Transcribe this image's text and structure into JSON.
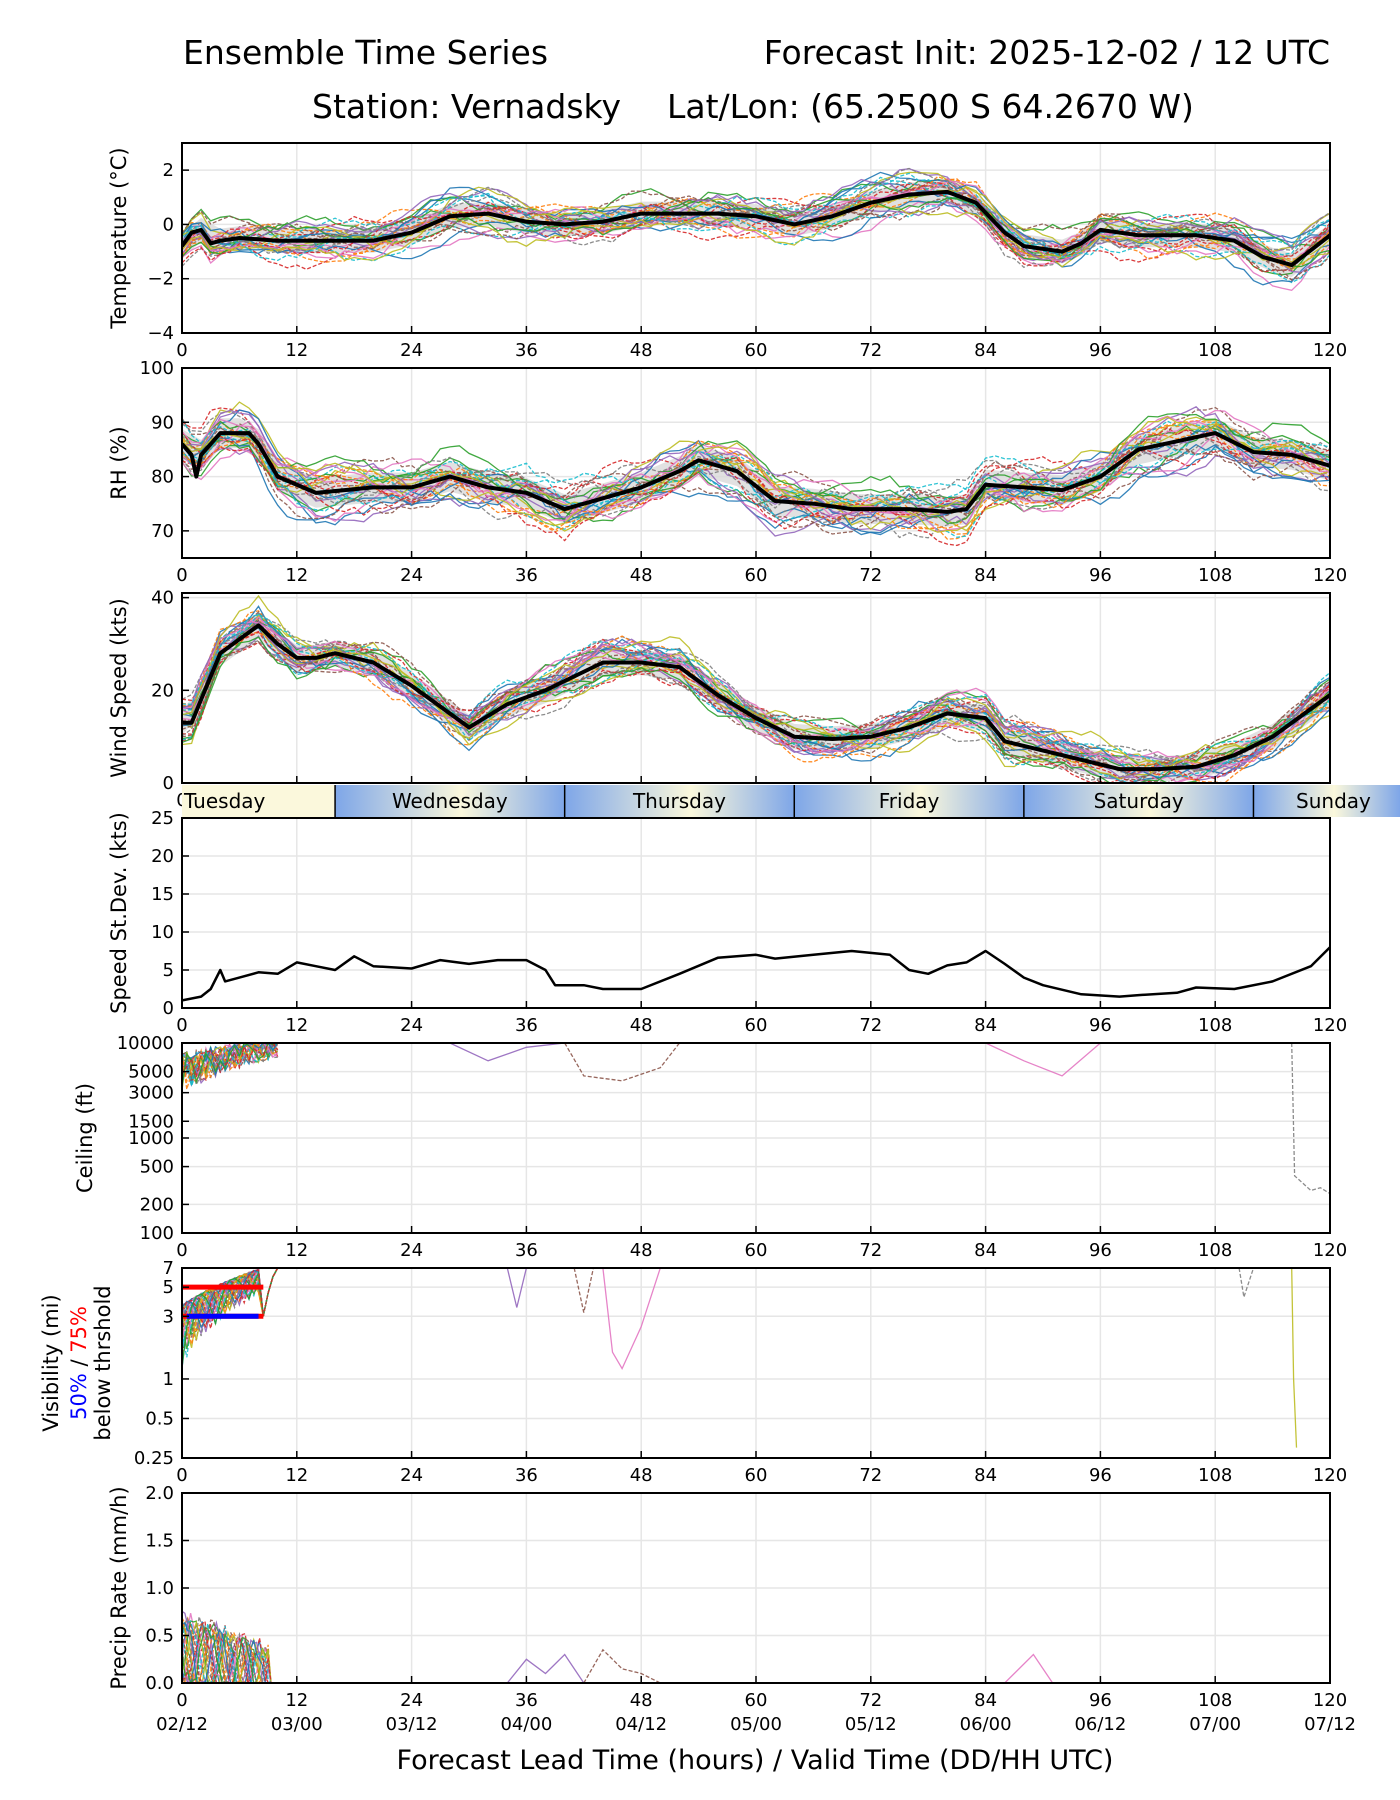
{
  "header": {
    "title_left": "Ensemble Time Series",
    "title_right": "Forecast Init: 2025-12-02 / 12 UTC",
    "station": "Station: Vernadsky",
    "latlon": "Lat/Lon: (65.2500 S 64.2670 W)"
  },
  "colors": {
    "members": [
      "#1f77b4",
      "#ff7f0e",
      "#2ca02c",
      "#d62728",
      "#9467bd",
      "#8c564b",
      "#e377c2",
      "#7f7f7f",
      "#bcbd22",
      "#17becf"
    ],
    "mean": "#000000",
    "spread": "#d9d9d9",
    "vis50": "#0000ff",
    "vis75": "#ff0000",
    "day_band_light": "#fbf8dc",
    "day_band_dark": "#7ea6e8"
  },
  "chart_data": {
    "type": "line",
    "x_label": "Forecast Lead Time (hours) / Valid Time (DD/HH UTC)",
    "x_ticks": [
      0,
      12,
      24,
      36,
      48,
      60,
      72,
      84,
      96,
      108,
      120
    ],
    "valid_times": [
      "02/12",
      "03/00",
      "03/12",
      "04/00",
      "04/12",
      "05/00",
      "05/12",
      "06/00",
      "06/12",
      "07/00",
      "07/12"
    ],
    "days": [
      "Tuesday",
      "Wednesday",
      "Thursday",
      "Friday",
      "Saturday",
      "Sunday"
    ],
    "day_boundaries_h": [
      16,
      40,
      64,
      88,
      112
    ],
    "panels": [
      {
        "id": "temperature",
        "ylabel": "Temperature (°C)",
        "ylim": [
          -4,
          3
        ],
        "yticks": [
          -4,
          -2,
          0,
          2
        ],
        "scale": "linear",
        "mean": [
          [
            0,
            -0.8
          ],
          [
            1,
            -0.3
          ],
          [
            2,
            -0.2
          ],
          [
            3,
            -0.7
          ],
          [
            4,
            -0.6
          ],
          [
            6,
            -0.5
          ],
          [
            10,
            -0.6
          ],
          [
            16,
            -0.6
          ],
          [
            20,
            -0.6
          ],
          [
            24,
            -0.3
          ],
          [
            28,
            0.3
          ],
          [
            32,
            0.4
          ],
          [
            36,
            0.1
          ],
          [
            40,
            0
          ],
          [
            44,
            0.1
          ],
          [
            48,
            0.4
          ],
          [
            52,
            0.4
          ],
          [
            56,
            0.4
          ],
          [
            60,
            0.3
          ],
          [
            64,
            0
          ],
          [
            68,
            0.3
          ],
          [
            72,
            0.8
          ],
          [
            76,
            1.1
          ],
          [
            80,
            1.2
          ],
          [
            83,
            0.8
          ],
          [
            86,
            -0.3
          ],
          [
            88,
            -0.8
          ],
          [
            92,
            -1
          ],
          [
            94,
            -0.7
          ],
          [
            96,
            -0.2
          ],
          [
            100,
            -0.4
          ],
          [
            106,
            -0.4
          ],
          [
            110,
            -0.6
          ],
          [
            113,
            -1.2
          ],
          [
            116,
            -1.5
          ],
          [
            120,
            -0.4
          ]
        ],
        "series": []
      },
      {
        "id": "rh",
        "ylabel": "RH (%)",
        "ylim": [
          65,
          100
        ],
        "yticks": [
          70,
          80,
          90,
          100
        ],
        "scale": "linear",
        "mean": [
          [
            0,
            86
          ],
          [
            1,
            84
          ],
          [
            1.5,
            80
          ],
          [
            2,
            84
          ],
          [
            4,
            88
          ],
          [
            7,
            88
          ],
          [
            8,
            86
          ],
          [
            10,
            80
          ],
          [
            14,
            77
          ],
          [
            20,
            78
          ],
          [
            24,
            78
          ],
          [
            28,
            80
          ],
          [
            32,
            78
          ],
          [
            36,
            77
          ],
          [
            40,
            74
          ],
          [
            44,
            76
          ],
          [
            48,
            78
          ],
          [
            52,
            81
          ],
          [
            54,
            83
          ],
          [
            58,
            81
          ],
          [
            62,
            75.5
          ],
          [
            66,
            75
          ],
          [
            70,
            74
          ],
          [
            72,
            74
          ],
          [
            76,
            74
          ],
          [
            80,
            73.5
          ],
          [
            82,
            74
          ],
          [
            84,
            78.5
          ],
          [
            88,
            78
          ],
          [
            92,
            77.5
          ],
          [
            96,
            80
          ],
          [
            100,
            85
          ],
          [
            104,
            86.5
          ],
          [
            108,
            88
          ],
          [
            112,
            84.5
          ],
          [
            116,
            84
          ],
          [
            120,
            82
          ]
        ],
        "series": []
      },
      {
        "id": "wind",
        "ylabel": "Wind Speed (kts)",
        "ylim": [
          0,
          41
        ],
        "yticks": [
          0,
          20,
          40
        ],
        "scale": "linear",
        "mean": [
          [
            0,
            13
          ],
          [
            1,
            13
          ],
          [
            2,
            18
          ],
          [
            4,
            28
          ],
          [
            6,
            31
          ],
          [
            8,
            34
          ],
          [
            10,
            30
          ],
          [
            12,
            27
          ],
          [
            14,
            27
          ],
          [
            16,
            28
          ],
          [
            20,
            26
          ],
          [
            24,
            21
          ],
          [
            28,
            15
          ],
          [
            30,
            12
          ],
          [
            34,
            17
          ],
          [
            38,
            20
          ],
          [
            40,
            22
          ],
          [
            44,
            26
          ],
          [
            48,
            26
          ],
          [
            52,
            25
          ],
          [
            56,
            19
          ],
          [
            60,
            14
          ],
          [
            64,
            10
          ],
          [
            68,
            9.5
          ],
          [
            72,
            10
          ],
          [
            76,
            12
          ],
          [
            80,
            15
          ],
          [
            84,
            14
          ],
          [
            86,
            9
          ],
          [
            90,
            7
          ],
          [
            94,
            5
          ],
          [
            98,
            3
          ],
          [
            102,
            3
          ],
          [
            106,
            3.5
          ],
          [
            110,
            6
          ],
          [
            114,
            10
          ],
          [
            118,
            16
          ],
          [
            120,
            19
          ]
        ],
        "series": []
      },
      {
        "id": "spread",
        "ylabel": "Speed St.Dev. (kts)",
        "ylim": [
          0,
          25
        ],
        "yticks": [
          0,
          5,
          10,
          15,
          20,
          25
        ],
        "scale": "linear",
        "mean": [
          [
            0,
            1
          ],
          [
            2,
            1.5
          ],
          [
            3,
            2.5
          ],
          [
            4,
            5
          ],
          [
            4.5,
            3.5
          ],
          [
            6,
            4
          ],
          [
            8,
            4.7
          ],
          [
            10,
            4.5
          ],
          [
            12,
            6
          ],
          [
            14,
            5.5
          ],
          [
            16,
            5
          ],
          [
            18,
            6.8
          ],
          [
            20,
            5.5
          ],
          [
            24,
            5.2
          ],
          [
            27,
            6.3
          ],
          [
            30,
            5.8
          ],
          [
            33,
            6.3
          ],
          [
            36,
            6.3
          ],
          [
            38,
            5
          ],
          [
            39,
            3
          ],
          [
            42,
            3
          ],
          [
            44,
            2.5
          ],
          [
            48,
            2.5
          ],
          [
            52,
            4.5
          ],
          [
            56,
            6.6
          ],
          [
            60,
            7
          ],
          [
            62,
            6.5
          ],
          [
            66,
            7
          ],
          [
            70,
            7.5
          ],
          [
            74,
            7
          ],
          [
            76,
            5
          ],
          [
            78,
            4.5
          ],
          [
            80,
            5.6
          ],
          [
            82,
            6
          ],
          [
            84,
            7.5
          ],
          [
            86,
            5.8
          ],
          [
            88,
            4
          ],
          [
            90,
            3
          ],
          [
            94,
            1.8
          ],
          [
            98,
            1.5
          ],
          [
            100,
            1.7
          ],
          [
            104,
            2
          ],
          [
            106,
            2.7
          ],
          [
            110,
            2.5
          ],
          [
            114,
            3.5
          ],
          [
            118,
            5.5
          ],
          [
            120,
            8
          ]
        ],
        "series": []
      },
      {
        "id": "ceiling",
        "ylabel": "Ceiling (ft)",
        "ylim": [
          100,
          10000
        ],
        "yticks": [
          100,
          200,
          500,
          1000,
          1500,
          3000,
          5000,
          10000
        ],
        "scale": "log",
        "mean": [],
        "series": []
      },
      {
        "id": "visibility",
        "ylabel": "Visibility (mi)",
        "ylabel_sub_left": "50%",
        "ylabel_sep": " / ",
        "ylabel_sub_right": "75%",
        "ylabel_tail": "below thrshold",
        "ylim": [
          0.25,
          7
        ],
        "yticks": [
          0.25,
          0.5,
          1,
          3,
          5,
          7
        ],
        "scale": "log",
        "threshold_bars": [
          {
            "level": 5,
            "from": 0,
            "to": 8.5,
            "color": "vis75"
          },
          {
            "level": 3,
            "from": 0,
            "to": 8.5,
            "color": "vis75"
          },
          {
            "level": 3,
            "from": 0.5,
            "to": 8,
            "color": "vis50"
          }
        ],
        "mean": [],
        "series": []
      },
      {
        "id": "precip",
        "ylabel": "Precip Rate (mm/h)",
        "ylim": [
          0,
          2
        ],
        "yticks": [
          0,
          0.5,
          1,
          1.5,
          2
        ],
        "scale": "linear",
        "mean": [],
        "series": []
      }
    ]
  }
}
